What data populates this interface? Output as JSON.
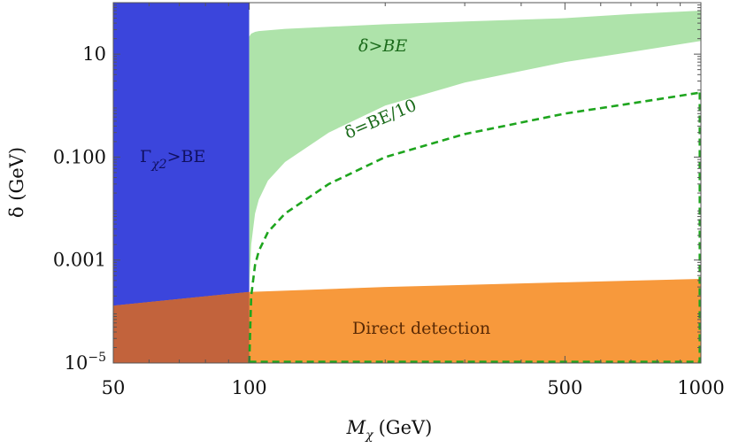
{
  "chart_data": {
    "type": "area",
    "x_scale": "log",
    "y_scale": "log",
    "xlim": [
      50,
      1000
    ],
    "ylim": [
      1e-05,
      100
    ],
    "xlabel_main": "M",
    "xlabel_sub": "χ",
    "xlabel_unit": "(GeV)",
    "ylabel": "δ (GeV)",
    "x_ticks": [
      {
        "value": 50,
        "label": "50"
      },
      {
        "value": 100,
        "label": "100"
      },
      {
        "value": 500,
        "label": "500"
      },
      {
        "value": 1000,
        "label": "1000"
      }
    ],
    "y_ticks": [
      {
        "value": 10,
        "label": "10"
      },
      {
        "value": 0.1,
        "label": "0.100"
      },
      {
        "value": 0.001,
        "label": "0.001"
      },
      {
        "value": 1e-05,
        "label_base": "10",
        "label_exp": "−5"
      }
    ],
    "regions": [
      {
        "name": "Γχ2>BE",
        "color": "#3b45dc",
        "x": [
          50,
          100
        ],
        "y_low": [
          1e-05,
          1e-05
        ],
        "y_high": [
          100,
          100
        ]
      },
      {
        "name": "δ>BE",
        "color": "#aee3aa",
        "x": [
          100,
          101,
          103,
          105,
          110,
          120,
          150,
          200,
          300,
          500,
          700,
          1000
        ],
        "y_low": [
          0.0003,
          0.002,
          0.008,
          0.015,
          0.035,
          0.08,
          0.3,
          1.0,
          2.8,
          7,
          11,
          18
        ],
        "y_high": [
          100,
          100,
          100,
          100,
          100,
          100,
          100,
          100,
          100,
          100,
          100,
          100
        ]
      },
      {
        "name": "Direct detection",
        "color": "#f7993c",
        "x": [
          50,
          100,
          200,
          500,
          1000
        ],
        "y_low": [
          1e-05,
          1e-05,
          1e-05,
          1e-05,
          1e-05
        ],
        "y_high": [
          0.00013,
          0.00024,
          0.0003,
          0.00037,
          0.00043
        ]
      }
    ],
    "overlap_color": "#c2633c",
    "green_boundary": {
      "x": [
        100,
        101,
        103,
        105,
        110,
        120,
        150,
        200,
        300,
        500,
        700,
        1000
      ],
      "y": [
        22,
        25,
        27,
        28,
        29,
        31,
        34,
        38,
        43,
        50,
        60,
        70
      ]
    },
    "dashed_line": {
      "name": "δ=BE/10",
      "color": "#1ea51e",
      "x": [
        100,
        101,
        103,
        105,
        110,
        120,
        150,
        200,
        300,
        500,
        700,
        1000
      ],
      "y": [
        1e-05,
        0.0002,
        0.0008,
        0.0015,
        0.0035,
        0.008,
        0.03,
        0.1,
        0.28,
        0.7,
        1.1,
        1.8
      ]
    },
    "annotations": {
      "gamma_label_main": "Γ",
      "gamma_label_sub": "χ2",
      "gamma_label_tail": ">BE",
      "delta_be": "δ>BE",
      "delta_be10": "δ=BE/10",
      "direct_detection": "Direct detection"
    },
    "colors": {
      "blue": "#3b45dc",
      "green": "#aee3aa",
      "orange": "#f7993c",
      "overlap": "#c2633c",
      "dashed": "#1ea51e",
      "gamma_text": "#101060",
      "green_text": "#1b6b1b",
      "dd_text": "#5a2a05"
    }
  }
}
